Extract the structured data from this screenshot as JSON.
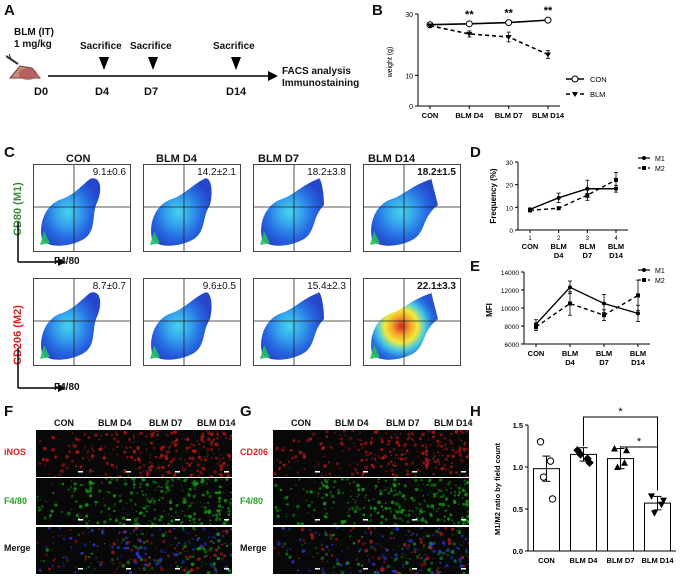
{
  "panels": {
    "A": {
      "letter": "A",
      "dose_line1": "BLM (IT)",
      "dose_line2": "1 mg/kg",
      "sacrifice": [
        "Sacrifice",
        "Sacrifice",
        "Sacrifice"
      ],
      "days": [
        "D0",
        "D4",
        "D7",
        "D14"
      ],
      "outcome_line1": "FACS analysis",
      "outcome_line2": "Immunostaining"
    },
    "B": {
      "letter": "B",
      "ylabel": "weight (g)",
      "legend": [
        "CON",
        "BLM"
      ],
      "significance": [
        "**",
        "**",
        "**"
      ]
    },
    "C": {
      "letter": "C",
      "columns": [
        "CON",
        "BLM D4",
        "BLM D7",
        "BLM D14"
      ],
      "row1_ylabel": "CD80 (M1)",
      "row2_ylabel": "CD206 (M2)",
      "xlabel": "F4/80",
      "row1_values": [
        "9.1±0.6",
        "14.2±2.1",
        "18.2±3.8",
        "18.2±1.5"
      ],
      "row2_values": [
        "8.7±0.7",
        "9.6±0.5",
        "15.4±2.3",
        "22.1±3.3"
      ]
    },
    "D": {
      "letter": "D",
      "ylabel": "Frequency (%)",
      "legend": [
        "M1",
        "M2"
      ]
    },
    "E": {
      "letter": "E",
      "ylabel": "MFI",
      "legend": [
        "M1",
        "M2"
      ]
    },
    "F": {
      "letter": "F",
      "columns": [
        "CON",
        "BLM D4",
        "BLM D7",
        "BLM D14"
      ],
      "rows": [
        "iNOS",
        "F4/80",
        "Merge"
      ]
    },
    "G": {
      "letter": "G",
      "columns": [
        "CON",
        "BLM D4",
        "BLM D7",
        "BLM D14"
      ],
      "rows": [
        "CD206",
        "F4/80",
        "Merge"
      ]
    },
    "H": {
      "letter": "H",
      "ylabel": "M1/M2 ratio by field count",
      "significance": [
        "*",
        "*"
      ]
    }
  },
  "colors": {
    "green_label": "#3a8a3a",
    "red_label": "#d62020",
    "stain_green": "#1fa31f"
  },
  "chart_data": [
    {
      "id": "B",
      "type": "line",
      "categories": [
        "CON",
        "BLM D4",
        "BLM D7",
        "BLM D14"
      ],
      "yticks": [
        0,
        10,
        30
      ],
      "ylim": [
        0,
        30
      ],
      "series": [
        {
          "name": "CON",
          "values": [
            26.5,
            26.8,
            27.2,
            28.0
          ],
          "err": [
            0.6,
            0.6,
            0.6,
            0.4
          ]
        },
        {
          "name": "BLM",
          "values": [
            26.2,
            23.5,
            22.5,
            16.8
          ],
          "err": [
            0.6,
            1.0,
            1.6,
            1.3
          ]
        }
      ]
    },
    {
      "id": "D",
      "type": "line",
      "categories": [
        "CON",
        "BLM D4",
        "BLM D7",
        "BLM D14"
      ],
      "xticks": [
        "1",
        "2",
        "3",
        "4"
      ],
      "yticks": [
        0,
        10,
        20,
        30
      ],
      "ylim": [
        0,
        30
      ],
      "series": [
        {
          "name": "M1",
          "values": [
            9.1,
            14.2,
            18.2,
            18.2
          ],
          "err": [
            0.6,
            2.1,
            3.8,
            1.5
          ]
        },
        {
          "name": "M2",
          "values": [
            8.7,
            9.6,
            15.4,
            22.1
          ],
          "err": [
            0.7,
            0.5,
            2.3,
            3.3
          ]
        }
      ]
    },
    {
      "id": "E",
      "type": "line",
      "categories": [
        "CON",
        "BLM D4",
        "BLM D7",
        "BLM D14"
      ],
      "yticks": [
        6000,
        8000,
        10000,
        12000,
        14000
      ],
      "ylim": [
        6000,
        14000
      ],
      "series": [
        {
          "name": "M1",
          "values": [
            8200,
            12300,
            10500,
            9400
          ],
          "err": [
            500,
            700,
            1000,
            900
          ]
        },
        {
          "name": "M2",
          "values": [
            7900,
            10500,
            9200,
            11400
          ],
          "err": [
            400,
            1300,
            600,
            1700
          ]
        }
      ]
    },
    {
      "id": "H",
      "type": "bar",
      "categories": [
        "CON",
        "BLM D4",
        "BLM D7",
        "BLM D14"
      ],
      "values": [
        0.98,
        1.15,
        1.1,
        0.57
      ],
      "err": [
        0.15,
        0.08,
        0.12,
        0.08
      ],
      "points": [
        [
          1.3,
          1.07,
          0.88,
          0.62
        ],
        [
          1.2,
          1.1,
          1.15,
          1.05
        ],
        [
          1.22,
          1.05,
          1.0,
          1.2
        ],
        [
          0.65,
          0.55,
          0.45,
          0.6
        ]
      ],
      "yticks": [
        0.0,
        0.5,
        1.0,
        1.5
      ],
      "ylim": [
        0,
        1.5
      ]
    }
  ]
}
